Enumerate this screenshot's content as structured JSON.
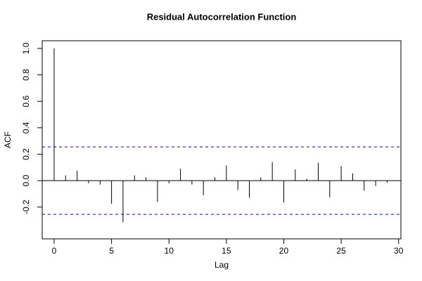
{
  "chart_data": {
    "type": "stem",
    "title": "Residual Autocorrelation Function",
    "x_label": "Lag",
    "y_label": "ACF",
    "x": [
      0,
      1,
      2,
      3,
      4,
      5,
      6,
      7,
      8,
      9,
      10,
      11,
      12,
      13,
      14,
      15,
      16,
      17,
      18,
      19,
      20,
      21,
      22,
      23,
      24,
      25,
      26,
      27,
      28,
      29
    ],
    "values": [
      1.0,
      0.04,
      0.075,
      -0.02,
      -0.03,
      -0.175,
      -0.315,
      0.04,
      0.025,
      -0.16,
      -0.02,
      0.09,
      -0.03,
      -0.11,
      0.025,
      0.115,
      -0.07,
      -0.13,
      0.025,
      0.14,
      -0.165,
      0.085,
      0.015,
      0.135,
      -0.125,
      0.11,
      0.055,
      -0.075,
      -0.04,
      -0.015
    ],
    "color": "#000000",
    "confidence_limits": [
      0.255,
      -0.255
    ],
    "confidence_color": "#0000cc",
    "xlim": [
      -1.04,
      30.2
    ],
    "ylim": [
      -0.44,
      1.058
    ],
    "xticks": [
      0,
      5,
      10,
      15,
      20,
      25,
      30
    ],
    "yticks": [
      -0.2,
      {
        "value": 0,
        "label": "0.0"
      },
      0.2,
      0.4,
      0.6,
      0.8,
      {
        "value": 1,
        "label": "1.0"
      }
    ]
  }
}
